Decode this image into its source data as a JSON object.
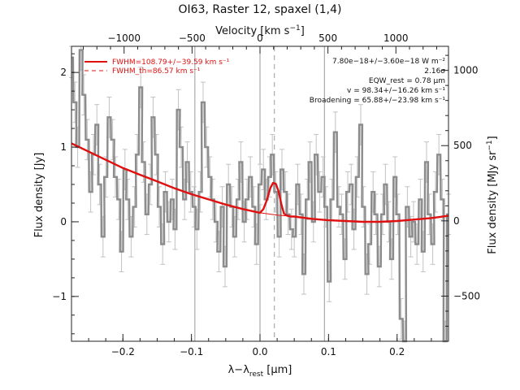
{
  "chart_data": {
    "type": "line",
    "title": "OI63, Raster 12, spaxel (1,4)",
    "xlabel": "λ−λ_rest [μm]",
    "xlabel_main": "λ−λ",
    "xlabel_sub": "rest",
    "xlabel_unit": " [μm]",
    "ylabel": "Flux density [Jy]",
    "top_xlabel": "Velocity [km s⁻¹]",
    "top_xlabel_main": "Velocity [km s",
    "top_xlabel_sup": "−1",
    "top_xlabel_end": "]",
    "right_ylabel": "Flux density [MJy sr⁻¹]",
    "right_ylabel_main": "Flux density [MJy sr",
    "right_ylabel_sup": "−1",
    "right_ylabel_end": "]",
    "xlim": [
      -0.275,
      0.275
    ],
    "ylim": [
      -1.6,
      2.35
    ],
    "top_xlim": [
      -1387,
      1387
    ],
    "right_ylim": [
      -800,
      1160
    ],
    "x_ticks": [
      -0.2,
      -0.1,
      0.0,
      0.1,
      0.2
    ],
    "x_tick_labels": [
      "−0.2",
      "−0.1",
      "0.0",
      "0.1",
      "0.2"
    ],
    "y_ticks": [
      -1,
      0,
      1,
      2
    ],
    "y_tick_labels": [
      "−1",
      "0",
      "1",
      "2"
    ],
    "top_x_ticks": [
      -1000,
      -500,
      0,
      500,
      1000
    ],
    "top_x_tick_labels": [
      "−1000",
      "−500",
      "0",
      "500",
      "1000"
    ],
    "right_y_ticks": [
      -500,
      0,
      500,
      1000
    ],
    "right_y_tick_labels": [
      "−500",
      "0",
      "500",
      "1000"
    ],
    "vertical_lines": [
      -0.095,
      0.0,
      0.094
    ],
    "dashed_line_x": 0.021,
    "legend": {
      "placement": "top-left",
      "entries": [
        {
          "label": "FWHM=108.79+/−39.59 km s⁻¹",
          "style": "solid",
          "color": "#e01010"
        },
        {
          "label": "FWHM_th=86.57 km s⁻¹",
          "style": "dashed",
          "color": "#e01010"
        }
      ]
    },
    "annotations": [
      "7.80e−18+/−3.60e−18 W m⁻²",
      "2.16σ",
      "EQW_rest = 0.78 μm",
      "v = 98.34+/−16.26 km s⁻¹",
      "Broadening = 65.88+/−23.98 km s⁻¹"
    ],
    "series": [
      {
        "style": "histogram",
        "color": "#8c8c8c",
        "x": [
          -0.275,
          -0.27,
          -0.266,
          -0.261,
          -0.257,
          -0.252,
          -0.247,
          -0.243,
          -0.238,
          -0.234,
          -0.229,
          -0.225,
          -0.22,
          -0.215,
          -0.211,
          -0.206,
          -0.202,
          -0.197,
          -0.193,
          -0.188,
          -0.183,
          -0.179,
          -0.174,
          -0.17,
          -0.165,
          -0.16,
          -0.156,
          -0.151,
          -0.147,
          -0.142,
          -0.138,
          -0.133,
          -0.128,
          -0.124,
          -0.119,
          -0.115,
          -0.11,
          -0.106,
          -0.101,
          -0.096,
          -0.092,
          -0.087,
          -0.083,
          -0.078,
          -0.073,
          -0.069,
          -0.064,
          -0.06,
          -0.055,
          -0.051,
          -0.046,
          -0.041,
          -0.037,
          -0.032,
          -0.028,
          -0.023,
          -0.019,
          -0.014,
          -0.009,
          -0.005,
          0.0,
          0.005,
          0.009,
          0.014,
          0.018,
          0.023,
          0.028,
          0.032,
          0.037,
          0.041,
          0.046,
          0.05,
          0.055,
          0.06,
          0.064,
          0.069,
          0.073,
          0.078,
          0.082,
          0.087,
          0.092,
          0.096,
          0.101,
          0.105,
          0.11,
          0.115,
          0.119,
          0.124,
          0.128,
          0.133,
          0.137,
          0.142,
          0.147,
          0.151,
          0.156,
          0.16,
          0.165,
          0.169,
          0.174,
          0.179,
          0.183,
          0.188,
          0.192,
          0.197,
          0.201,
          0.206,
          0.211,
          0.215,
          0.22,
          0.224,
          0.229,
          0.234,
          0.238,
          0.243,
          0.247,
          0.252,
          0.256,
          0.261,
          0.266,
          0.27,
          0.275
        ],
        "y": [
          2.2,
          1.6,
          1.0,
          2.3,
          1.7,
          1.1,
          0.4,
          0.9,
          1.3,
          0.5,
          -0.2,
          0.6,
          1.4,
          1.1,
          0.6,
          0.3,
          -0.4,
          0.7,
          0.3,
          -0.2,
          0.2,
          0.9,
          1.8,
          0.8,
          0.1,
          0.5,
          1.4,
          0.9,
          0.2,
          -0.3,
          0.4,
          0.0,
          0.3,
          -0.1,
          1.5,
          1.0,
          0.3,
          0.8,
          0.4,
          0.2,
          -0.1,
          0.4,
          1.6,
          1.0,
          0.6,
          0.3,
          0.0,
          -0.4,
          0.2,
          -0.6,
          0.5,
          0.2,
          -0.2,
          0.3,
          0.8,
          0.0,
          0.3,
          0.6,
          0.2,
          -0.3,
          0.5,
          0.7,
          0.3,
          0.6,
          0.9,
          0.4,
          -0.2,
          0.7,
          0.4,
          0.1,
          -0.1,
          -0.2,
          0.5,
          0.1,
          -0.7,
          0.3,
          0.8,
          0.0,
          0.9,
          0.4,
          0.6,
          0.2,
          -0.8,
          0.3,
          1.2,
          0.2,
          0.1,
          -0.5,
          0.4,
          0.5,
          -0.1,
          0.6,
          1.3,
          0.2,
          -0.7,
          -0.3,
          0.4,
          0.1,
          -0.6,
          0.1,
          0.5,
          0.0,
          -0.5,
          0.6,
          0.1,
          -1.3,
          -1.6,
          0.2,
          -0.2,
          0.0,
          -0.3,
          0.3,
          -0.4,
          0.8,
          0.1,
          -0.3,
          0.4,
          0.9,
          0.3,
          -1.6,
          0.1
        ]
      },
      {
        "name": "FWHM=108.79+/−39.59 km s⁻¹",
        "style": "line",
        "color": "#e01010",
        "x": [
          -0.275,
          -0.25,
          -0.225,
          -0.2,
          -0.175,
          -0.15,
          -0.125,
          -0.1,
          -0.075,
          -0.05,
          -0.025,
          0.0,
          0.005,
          0.01,
          0.015,
          0.019,
          0.023,
          0.027,
          0.031,
          0.035,
          0.04,
          0.045,
          0.05,
          0.075,
          0.1,
          0.125,
          0.15,
          0.175,
          0.2,
          0.225,
          0.25,
          0.275
        ],
        "y": [
          1.05,
          0.94,
          0.83,
          0.72,
          0.63,
          0.54,
          0.45,
          0.37,
          0.3,
          0.23,
          0.17,
          0.12,
          0.17,
          0.29,
          0.45,
          0.52,
          0.51,
          0.41,
          0.24,
          0.11,
          0.08,
          0.07,
          0.07,
          0.04,
          0.02,
          0.01,
          0.0,
          0.0,
          0.01,
          0.03,
          0.05,
          0.08
        ]
      },
      {
        "style": "line",
        "color": "#e01010",
        "x": [
          -0.025,
          0.0,
          0.025,
          0.05
        ],
        "y": [
          0.17,
          0.12,
          0.09,
          0.07
        ]
      }
    ]
  }
}
